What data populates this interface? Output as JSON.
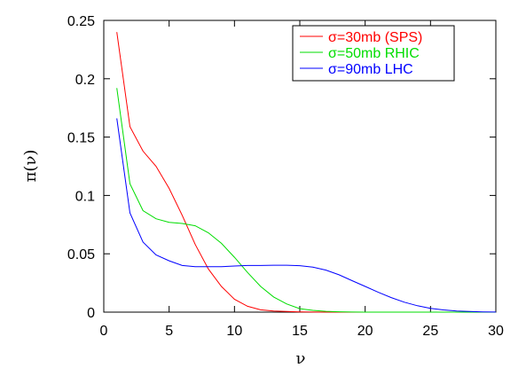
{
  "chart_data": {
    "type": "line",
    "xlabel": "ν",
    "ylabel": "π(ν)",
    "xlim": [
      0,
      30
    ],
    "ylim": [
      0,
      0.25
    ],
    "x_ticks": [
      "0",
      "5",
      "10",
      "15",
      "20",
      "25",
      "30"
    ],
    "y_ticks": [
      "0",
      "0.05",
      "0.1",
      "0.15",
      "0.2",
      "0.25"
    ],
    "grid": false,
    "legend_position": "top-right",
    "series": [
      {
        "name": "σ=30mb (SPS)",
        "color": "#ff0000",
        "x": [
          1,
          2,
          3,
          4,
          5,
          6,
          7,
          8,
          9,
          10,
          11,
          12,
          13,
          14,
          15,
          16,
          18,
          20,
          25,
          30
        ],
        "y": [
          0.24,
          0.159,
          0.138,
          0.125,
          0.106,
          0.083,
          0.058,
          0.037,
          0.022,
          0.011,
          0.005,
          0.002,
          0.001,
          0.0005,
          0.0002,
          0.0001,
          0,
          0,
          0,
          0
        ]
      },
      {
        "name": "σ=50mb RHIC",
        "color": "#00dd00",
        "x": [
          1,
          2,
          3,
          4,
          5,
          6,
          7,
          8,
          9,
          10,
          11,
          12,
          13,
          14,
          15,
          16,
          17,
          18,
          19,
          20,
          22,
          25,
          30
        ],
        "y": [
          0.192,
          0.11,
          0.087,
          0.08,
          0.077,
          0.076,
          0.074,
          0.068,
          0.059,
          0.047,
          0.034,
          0.022,
          0.013,
          0.007,
          0.003,
          0.0015,
          0.0007,
          0.0003,
          0.0001,
          0,
          0,
          0,
          0
        ]
      },
      {
        "name": "σ=90mb LHC",
        "color": "#0000ff",
        "x": [
          1,
          2,
          3,
          4,
          5,
          6,
          7,
          8,
          9,
          10,
          11,
          12,
          13,
          14,
          15,
          16,
          17,
          18,
          19,
          20,
          21,
          22,
          23,
          24,
          25,
          26,
          27,
          28,
          29,
          30
        ],
        "y": [
          0.166,
          0.085,
          0.06,
          0.049,
          0.044,
          0.04,
          0.039,
          0.039,
          0.039,
          0.0395,
          0.04,
          0.04,
          0.0402,
          0.0402,
          0.0398,
          0.0385,
          0.036,
          0.032,
          0.027,
          0.022,
          0.017,
          0.0125,
          0.0085,
          0.0055,
          0.0033,
          0.0019,
          0.001,
          0.0005,
          0.0002,
          0.0001
        ]
      }
    ]
  }
}
